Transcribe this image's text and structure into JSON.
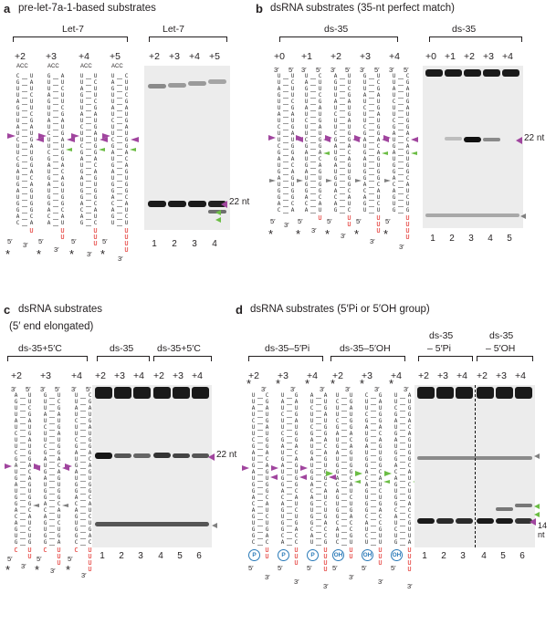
{
  "panels": {
    "a": {
      "letter": "a",
      "title": "pre-let-7a-1-based substrates",
      "construct_group": "Let-7",
      "constructs": [
        "+2",
        "+3",
        "+4",
        "+5"
      ],
      "gel_group": "Let-7",
      "gel_headers": [
        "+2",
        "+3",
        "+4",
        "+5"
      ],
      "lanes": [
        "1",
        "2",
        "3",
        "4"
      ],
      "loop_label": "ACC",
      "size_marker": "22 nt"
    },
    "b": {
      "letter": "b",
      "title": "dsRNA substrates (35-nt perfect match)",
      "construct_group": "ds-35",
      "constructs": [
        "+0",
        "+1",
        "+2",
        "+3",
        "+4"
      ],
      "gel_group": "ds-35",
      "gel_headers": [
        "+0",
        "+1",
        "+2",
        "+3",
        "+4"
      ],
      "lanes": [
        "1",
        "2",
        "3",
        "4",
        "5"
      ],
      "size_marker": "22 nt"
    },
    "c": {
      "letter": "c",
      "title": "dsRNA substrates",
      "title_line2": "(5′ end elongated)",
      "construct_group": "ds-35+5′C",
      "constructs": [
        "+2",
        "+3",
        "+4"
      ],
      "gel_group_1": "ds-35",
      "gel_group_2": "ds-35+5′C",
      "gel_headers": [
        "+2",
        "+3",
        "+4",
        "+2",
        "+3",
        "+4"
      ],
      "lanes": [
        "1",
        "2",
        "3",
        "4",
        "5",
        "6"
      ],
      "size_marker": "22 nt"
    },
    "d": {
      "letter": "d",
      "title": "dsRNA substrates (5′Pi or 5′OH group)",
      "construct_group_1": "ds-35–5′Pi",
      "construct_group_2": "ds-35–5′OH",
      "constructs_1": [
        "+2",
        "+3",
        "+4"
      ],
      "constructs_2": [
        "+2",
        "+3",
        "+4"
      ],
      "gel_group_1_line1": "ds-35",
      "gel_group_1_line2": "– 5′Pi",
      "gel_group_2_line1": "ds-35",
      "gel_group_2_line2": "– 5′OH",
      "gel_headers": [
        "+2",
        "+3",
        "+4",
        "+2",
        "+3",
        "+4"
      ],
      "lanes": [
        "1",
        "2",
        "3",
        "4",
        "5",
        "6"
      ],
      "pi_label": "P",
      "oh_label": "OH",
      "size_marker": "14 nt"
    }
  },
  "labels": {
    "five_prime": "5′",
    "three_prime": "3′",
    "star": "*"
  },
  "colors": {
    "purple": "#a0459e",
    "green": "#6cbd45",
    "grey": "#808080",
    "red": "#e0201b",
    "blue": "#2a7ab8"
  }
}
